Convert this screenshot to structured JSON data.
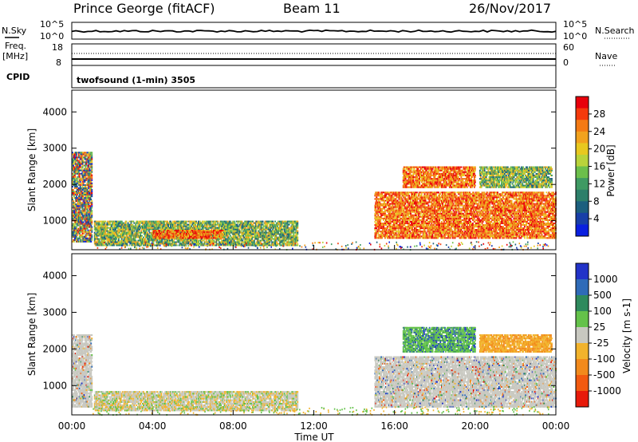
{
  "header": {
    "title": "Prince George (fitACF)",
    "beam": "Beam 11",
    "date": "26/Nov/2017"
  },
  "summary": {
    "nsky_label": "N.Sky",
    "nsky_ticks": [
      "10^5",
      "10^0"
    ],
    "nsearch_label": "N.Search",
    "nsearch_ticks": [
      "10^5",
      "10^0"
    ],
    "freq_label": "Freq.",
    "freq_unit": "[MHz]",
    "freq_ticks": [
      "18",
      "8"
    ],
    "nave_label": "Nave",
    "nave_ticks": [
      "60",
      "0"
    ],
    "cpid_label": "CPID",
    "cpid_value": "twofsound (1-min) 3505"
  },
  "icons": [
    "colorbar-power",
    "colorbar-velocity"
  ],
  "chart_data": [
    {
      "type": "heatmap",
      "name": "power",
      "ylabel": "Slant Range [km]",
      "xlabel": "",
      "ylim": [
        200,
        4600
      ],
      "y_ticks": [
        "1000",
        "2000",
        "3000",
        "4000"
      ],
      "x_ticks": [
        "00:00",
        "04:00",
        "08:00",
        "12:00",
        "16:00",
        "20:00",
        "00:00"
      ],
      "colorbar": {
        "label": "Power [dB]",
        "ticks": [
          "28",
          "24",
          "20",
          "16",
          "12",
          "8",
          "4"
        ],
        "colors": [
          "#e8000b",
          "#f53a0c",
          "#f47a14",
          "#f2a21e",
          "#e8c81f",
          "#b9d33a",
          "#6cbf4b",
          "#3f9a63",
          "#2d7f6a",
          "#1c5f7e",
          "#183fa8",
          "#0a1fe0"
        ]
      },
      "regions": [
        {
          "t0": 0.0,
          "t1": 1.0,
          "r0": 400,
          "r1": 2900,
          "level": "mixed-high"
        },
        {
          "t0": 1.1,
          "t1": 11.2,
          "r0": 300,
          "r1": 1000,
          "level": "mid"
        },
        {
          "t0": 4.0,
          "t1": 7.5,
          "r0": 500,
          "r1": 750,
          "level": "high"
        },
        {
          "t0": 15.0,
          "t1": 24.0,
          "r0": 500,
          "r1": 1800,
          "level": "high"
        },
        {
          "t0": 16.4,
          "t1": 20.0,
          "r0": 1900,
          "r1": 2500,
          "level": "high"
        },
        {
          "t0": 20.2,
          "t1": 23.8,
          "r0": 1900,
          "r1": 2500,
          "level": "mid"
        }
      ]
    },
    {
      "type": "heatmap",
      "name": "velocity",
      "ylabel": "Slant Range [km]",
      "xlabel": "Time UT",
      "ylim": [
        200,
        4600
      ],
      "y_ticks": [
        "1000",
        "2000",
        "3000",
        "4000"
      ],
      "x_ticks": [
        "00:00",
        "04:00",
        "08:00",
        "12:00",
        "16:00",
        "20:00",
        "00:00"
      ],
      "colorbar": {
        "label": "Velocity [m s-1]",
        "ticks": [
          "1000",
          "500",
          "100",
          "25",
          "-25",
          "-100",
          "-500",
          "-1000"
        ],
        "colors": [
          "#2233c8",
          "#2f6bb8",
          "#2f8a5d",
          "#64c24a",
          "#c8c8c0",
          "#f2b32c",
          "#f28a1c",
          "#f25a10",
          "#e81a0a"
        ]
      },
      "regions": [
        {
          "t0": 0.0,
          "t1": 1.0,
          "r0": 400,
          "r1": 2400,
          "level": "gray"
        },
        {
          "t0": 1.1,
          "t1": 11.2,
          "r0": 300,
          "r1": 850,
          "level": "gray-orange"
        },
        {
          "t0": 15.0,
          "t1": 24.0,
          "r0": 400,
          "r1": 1800,
          "level": "gray"
        },
        {
          "t0": 16.4,
          "t1": 20.0,
          "r0": 1900,
          "r1": 2600,
          "level": "green"
        },
        {
          "t0": 20.2,
          "t1": 23.8,
          "r0": 1900,
          "r1": 2400,
          "level": "orange"
        }
      ]
    }
  ]
}
